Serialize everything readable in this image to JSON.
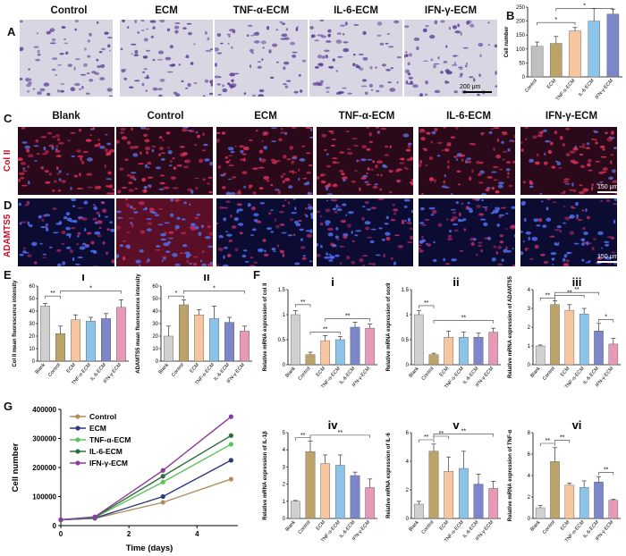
{
  "panel_letters": {
    "A": "A",
    "B": "B",
    "C": "C",
    "D": "D",
    "E": "E",
    "F": "F",
    "G": "G"
  },
  "panelA": {
    "columns": [
      "Control",
      "ECM",
      "TNF-α-ECM",
      "IL-6-ECM",
      "IFN-γ-ECM"
    ],
    "scale_label": "200 μm"
  },
  "panelCD": {
    "columns": [
      "Blank",
      "Control",
      "ECM",
      "TNF-α-ECM",
      "IL-6-ECM",
      "IFN-γ-ECM"
    ],
    "row_C": "Col II",
    "row_D": "ADAMTS5",
    "scale_label": "150 μm"
  },
  "chart_data": [
    {
      "id": "B",
      "type": "bar",
      "categories": [
        "Control",
        "ECM",
        "TNF-α-ECM",
        "IL-6-ECM",
        "IFN-γ-ECM"
      ],
      "values": [
        110,
        120,
        165,
        200,
        225
      ],
      "errors": [
        15,
        25,
        12,
        45,
        18
      ],
      "ylabel": "Cell number",
      "ylim": [
        0,
        250
      ],
      "yticks": [
        0,
        50,
        100,
        150,
        200,
        250
      ],
      "sig": [
        "*",
        "*"
      ]
    },
    {
      "id": "E-i",
      "type": "bar",
      "sublabel": "i",
      "categories": [
        "Blank",
        "Control",
        "ECM",
        "TNF-α-ECM",
        "IL-6-ECM",
        "IFN-γ-ECM"
      ],
      "values": [
        44,
        22,
        33,
        32,
        34,
        43
      ],
      "errors": [
        2,
        6,
        4,
        3,
        4,
        6
      ],
      "ylabel": "Col II mean fluorescence intensity",
      "ylim": [
        0,
        60
      ],
      "yticks": [
        0,
        10,
        20,
        30,
        40,
        50,
        60
      ],
      "sig": [
        "**",
        "*"
      ]
    },
    {
      "id": "E-ii",
      "type": "bar",
      "sublabel": "ii",
      "categories": [
        "Blank",
        "Control",
        "ECM",
        "TNF-α-ECM",
        "IL-6-ECM",
        "IFN-γ-ECM"
      ],
      "values": [
        20,
        45,
        37,
        34,
        31,
        24
      ],
      "errors": [
        8,
        4,
        4,
        10,
        4,
        4
      ],
      "ylabel": "ADAMTS5 mean fluorescence intensity",
      "ylim": [
        0,
        60
      ],
      "yticks": [
        0,
        10,
        20,
        30,
        40,
        50,
        60
      ],
      "sig": [
        "*",
        "*"
      ]
    },
    {
      "id": "F-i",
      "type": "bar",
      "sublabel": "i",
      "categories": [
        "Blank",
        "Control",
        "ECM",
        "TNF-α-ECM",
        "IL-6-ECM",
        "IFN-γ-ECM"
      ],
      "values": [
        1.0,
        0.2,
        0.48,
        0.5,
        0.75,
        0.73
      ],
      "errors": [
        0.08,
        0.05,
        0.1,
        0.06,
        0.1,
        0.08
      ],
      "ylabel": "Relative mRNA expression of col II",
      "ylim": [
        0,
        1.5
      ],
      "yticks": [
        0,
        0.5,
        1.0,
        1.5
      ],
      "sig": [
        "**",
        "**",
        "**"
      ]
    },
    {
      "id": "F-ii",
      "type": "bar",
      "sublabel": "ii",
      "categories": [
        "Blank",
        "Control",
        "ECM",
        "TNF-α-ECM",
        "IL-6-ECM",
        "IFN-γ-ECM"
      ],
      "values": [
        1.0,
        0.2,
        0.55,
        0.55,
        0.55,
        0.65
      ],
      "errors": [
        0.08,
        0.03,
        0.12,
        0.1,
        0.08,
        0.08
      ],
      "ylabel": "Relative mRNA expression of sox9",
      "ylim": [
        0,
        1.5
      ],
      "yticks": [
        0,
        0.5,
        1.0,
        1.5
      ],
      "sig": [
        "**",
        "**"
      ]
    },
    {
      "id": "F-iii",
      "type": "bar",
      "sublabel": "iii",
      "categories": [
        "Blank",
        "Control",
        "ECM",
        "TNF-α-ECM",
        "IL-6-ECM",
        "IFN-γ-ECM"
      ],
      "values": [
        1.0,
        3.2,
        2.9,
        2.7,
        1.8,
        1.1
      ],
      "errors": [
        0.05,
        0.2,
        0.3,
        0.3,
        0.4,
        0.3
      ],
      "ylabel": "Relative mRNA expression of ADAMTS5",
      "ylim": [
        0,
        4
      ],
      "yticks": [
        0,
        1,
        2,
        3,
        4
      ],
      "sig": [
        "**",
        "**",
        "**",
        "*"
      ]
    },
    {
      "id": "F-iv",
      "type": "bar",
      "sublabel": "iv",
      "categories": [
        "Blank",
        "Control",
        "ECM",
        "TNF-α-ECM",
        "IL-6-ECM",
        "IFN-γ-ECM"
      ],
      "values": [
        1.0,
        3.9,
        3.2,
        3.1,
        2.5,
        1.8
      ],
      "errors": [
        0.05,
        0.6,
        0.5,
        0.6,
        0.2,
        0.5
      ],
      "ylabel": "Relative mRNA expression of IL-1β",
      "ylim": [
        0,
        5
      ],
      "yticks": [
        0,
        1,
        2,
        3,
        4,
        5
      ],
      "sig": [
        "**",
        "**"
      ]
    },
    {
      "id": "F-v",
      "type": "bar",
      "sublabel": "v",
      "categories": [
        "Blank",
        "Control",
        "ECM",
        "TNF-α-ECM",
        "IL-6-ECM",
        "IFN-γ-ECM"
      ],
      "values": [
        1.0,
        4.7,
        3.3,
        3.5,
        2.4,
        2.1
      ],
      "errors": [
        0.2,
        0.5,
        1.0,
        1.2,
        0.7,
        0.5
      ],
      "ylabel": "Relative mRNA expression of IL-6",
      "ylim": [
        0,
        6
      ],
      "yticks": [
        0,
        2,
        4,
        6
      ],
      "sig": [
        "**",
        "**",
        "**"
      ]
    },
    {
      "id": "F-vi",
      "type": "bar",
      "sublabel": "vi",
      "categories": [
        "Blank",
        "Control",
        "ECM",
        "TNF-α-ECM",
        "IL-6-ECM",
        "IFN-γ-ECM"
      ],
      "values": [
        1.0,
        5.3,
        3.1,
        2.9,
        3.4,
        1.7
      ],
      "errors": [
        0.2,
        1.3,
        0.2,
        0.6,
        0.5,
        0.1
      ],
      "ylabel": "Relative mRNA expression of TNF-α",
      "ylim": [
        0,
        8
      ],
      "yticks": [
        0,
        2,
        4,
        6,
        8
      ],
      "sig": [
        "**",
        "**",
        "**"
      ]
    },
    {
      "id": "G",
      "type": "line",
      "x": [
        0,
        1,
        3,
        5
      ],
      "xlabel": "Time (days)",
      "ylabel": "Cell number",
      "xlim": [
        0,
        5.2
      ],
      "ylim": [
        0,
        400000
      ],
      "xticks": [
        0,
        2,
        4
      ],
      "yticks": [
        0,
        100000,
        200000,
        300000,
        400000
      ],
      "legend_position": "top-left",
      "series": [
        {
          "name": "Control",
          "values": [
            20000,
            25000,
            80000,
            160000
          ],
          "color": "#b08d5a"
        },
        {
          "name": "ECM",
          "values": [
            20000,
            26000,
            100000,
            225000
          ],
          "color": "#2b3a7a"
        },
        {
          "name": "TNF-α-ECM",
          "values": [
            20000,
            28000,
            150000,
            280000
          ],
          "color": "#5cc25c"
        },
        {
          "name": "IL-6-ECM",
          "values": [
            20000,
            29000,
            170000,
            310000
          ],
          "color": "#2d6e3c"
        },
        {
          "name": "IFN-γ-ECM",
          "values": [
            20000,
            30000,
            190000,
            375000
          ],
          "color": "#8a3d9a"
        }
      ]
    }
  ],
  "bar_colors": [
    "#d0d0d0",
    "#bba36a",
    "#f6c6a0",
    "#8cc3e9",
    "#7c86c8",
    "#e69ab8"
  ],
  "b_colors": [
    "#c0c0c0",
    "#bba36a",
    "#f6c6a0",
    "#8cc3e9",
    "#7c86c8"
  ]
}
